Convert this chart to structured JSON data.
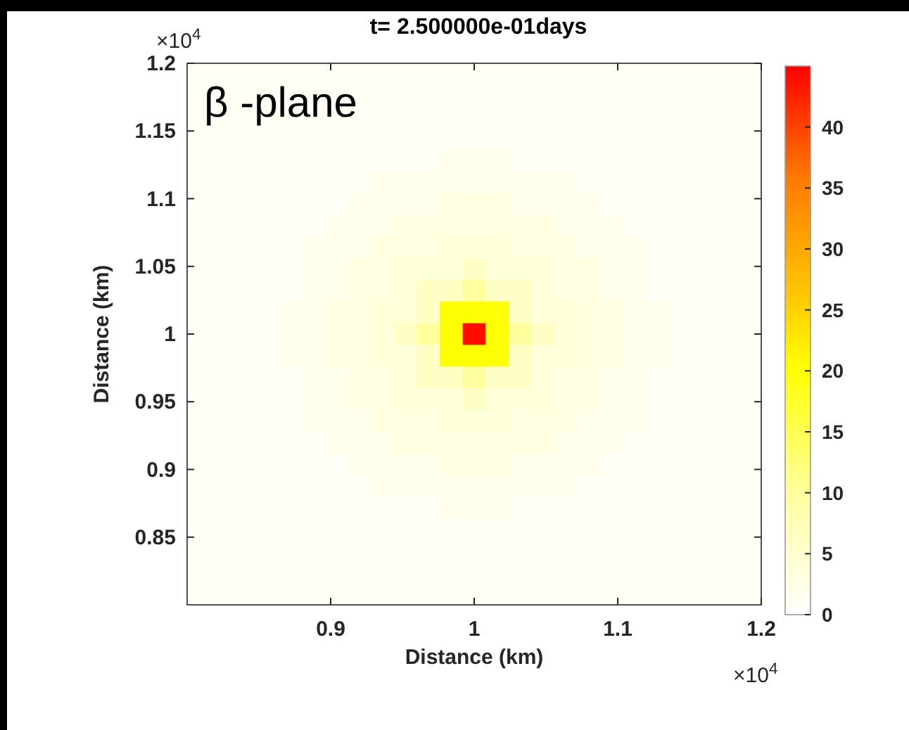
{
  "chart_data": {
    "type": "heatmap",
    "title": "t= 2.500000e-01days",
    "xlabel": "Distance (km)",
    "ylabel": "Distance (km)",
    "annotations": [
      "β -plane",
      "×10$^{4}$",
      "×10$^{4}$"
    ],
    "xlim": [
      0.8,
      1.2
    ],
    "ylim": [
      0.8,
      1.2
    ],
    "xticks": [
      0.9,
      1,
      1.1,
      1.2
    ],
    "yticks": [
      0.85,
      0.9,
      0.95,
      1,
      1.05,
      1.1,
      1.15,
      1.2
    ],
    "clim": [
      0,
      45
    ],
    "cticks": [
      0,
      5,
      10,
      15,
      20,
      25,
      30,
      35,
      40
    ],
    "grid": false,
    "cells": [
      [
        1,
        1,
        1,
        1,
        1,
        1,
        1,
        1,
        1,
        1,
        1,
        1,
        1,
        1,
        1,
        1,
        1,
        1,
        1,
        1,
        1,
        1,
        1,
        1,
        1
      ],
      [
        1,
        1,
        1,
        1,
        1,
        1,
        1,
        1,
        1,
        1,
        1,
        1,
        1,
        1,
        1,
        1,
        1,
        1,
        1,
        1,
        1,
        1,
        1,
        1,
        1
      ],
      [
        1,
        1,
        1,
        1,
        1,
        1,
        1,
        1,
        1,
        1,
        1,
        1,
        1,
        1,
        1,
        1,
        1,
        1,
        1,
        1,
        1,
        1,
        1,
        1,
        1
      ],
      [
        1,
        1,
        1,
        1,
        1,
        1,
        1,
        1,
        1,
        1,
        1,
        1,
        1,
        1,
        1,
        1,
        1,
        1,
        1,
        1,
        1,
        1,
        1,
        1,
        1
      ],
      [
        1,
        1,
        1,
        1,
        1,
        1,
        1,
        1,
        1,
        1,
        1,
        2,
        2,
        2,
        1,
        1,
        1,
        1,
        1,
        1,
        1,
        1,
        1,
        1,
        1
      ],
      [
        1,
        1,
        1,
        1,
        1,
        1,
        1,
        1,
        2,
        2,
        2,
        2,
        2,
        2,
        2,
        2,
        2,
        1,
        1,
        1,
        1,
        1,
        1,
        1,
        1
      ],
      [
        1,
        1,
        1,
        1,
        1,
        1,
        1,
        2,
        2,
        2,
        2,
        3,
        3,
        3,
        2,
        2,
        2,
        2,
        1,
        1,
        1,
        1,
        1,
        1,
        1
      ],
      [
        1,
        1,
        1,
        1,
        1,
        1,
        2,
        2,
        2,
        3,
        3,
        3,
        3,
        3,
        3,
        3,
        2,
        2,
        2,
        1,
        1,
        1,
        1,
        1,
        1
      ],
      [
        1,
        1,
        1,
        1,
        1,
        2,
        2,
        2,
        3,
        3,
        3,
        4,
        4,
        4,
        3,
        3,
        3,
        2,
        2,
        2,
        1,
        1,
        1,
        1,
        1
      ],
      [
        1,
        1,
        1,
        1,
        1,
        2,
        2,
        3,
        3,
        4,
        4,
        4,
        6,
        4,
        4,
        4,
        3,
        3,
        2,
        2,
        1,
        1,
        1,
        1,
        1
      ],
      [
        1,
        1,
        1,
        1,
        1,
        2,
        2,
        3,
        3,
        4,
        6,
        6,
        10,
        6,
        6,
        4,
        3,
        3,
        2,
        2,
        1,
        1,
        1,
        1,
        1
      ],
      [
        1,
        1,
        1,
        1,
        2,
        2,
        3,
        3,
        4,
        4,
        6,
        20,
        20,
        20,
        6,
        4,
        4,
        3,
        3,
        2,
        2,
        1,
        1,
        1,
        1
      ],
      [
        1,
        1,
        1,
        1,
        2,
        2,
        3,
        3,
        4,
        6,
        10,
        20,
        44,
        20,
        10,
        6,
        4,
        3,
        3,
        2,
        2,
        1,
        1,
        1,
        1
      ],
      [
        1,
        1,
        1,
        1,
        2,
        2,
        3,
        3,
        4,
        4,
        6,
        20,
        20,
        20,
        6,
        4,
        4,
        3,
        3,
        2,
        2,
        1,
        1,
        1,
        1
      ],
      [
        1,
        1,
        1,
        1,
        1,
        2,
        2,
        3,
        3,
        4,
        6,
        6,
        10,
        6,
        6,
        4,
        3,
        3,
        2,
        2,
        1,
        1,
        1,
        1,
        1
      ],
      [
        1,
        1,
        1,
        1,
        1,
        2,
        2,
        3,
        3,
        4,
        4,
        4,
        6,
        4,
        4,
        4,
        3,
        3,
        2,
        2,
        1,
        1,
        1,
        1,
        1
      ],
      [
        1,
        1,
        1,
        1,
        1,
        2,
        2,
        2,
        3,
        3,
        3,
        4,
        4,
        4,
        3,
        3,
        3,
        2,
        2,
        2,
        1,
        1,
        1,
        1,
        1
      ],
      [
        1,
        1,
        1,
        1,
        1,
        1,
        2,
        2,
        2,
        3,
        3,
        3,
        3,
        3,
        3,
        3,
        2,
        2,
        2,
        1,
        1,
        1,
        1,
        1,
        1
      ],
      [
        1,
        1,
        1,
        1,
        1,
        1,
        1,
        2,
        2,
        2,
        2,
        3,
        3,
        3,
        2,
        2,
        2,
        2,
        1,
        1,
        1,
        1,
        1,
        1,
        1
      ],
      [
        1,
        1,
        1,
        1,
        1,
        1,
        1,
        1,
        2,
        2,
        2,
        2,
        2,
        2,
        2,
        2,
        2,
        1,
        1,
        1,
        1,
        1,
        1,
        1,
        1
      ],
      [
        1,
        1,
        1,
        1,
        1,
        1,
        1,
        1,
        1,
        1,
        1,
        2,
        2,
        2,
        1,
        1,
        1,
        1,
        1,
        1,
        1,
        1,
        1,
        1,
        1
      ],
      [
        1,
        1,
        1,
        1,
        1,
        1,
        1,
        1,
        1,
        1,
        1,
        1,
        1,
        1,
        1,
        1,
        1,
        1,
        1,
        1,
        1,
        1,
        1,
        1,
        1
      ],
      [
        1,
        1,
        1,
        1,
        1,
        1,
        1,
        1,
        1,
        1,
        1,
        1,
        1,
        1,
        1,
        1,
        1,
        1,
        1,
        1,
        1,
        1,
        1,
        1,
        1
      ],
      [
        1,
        1,
        1,
        1,
        1,
        1,
        1,
        1,
        1,
        1,
        1,
        1,
        1,
        1,
        1,
        1,
        1,
        1,
        1,
        1,
        1,
        1,
        1,
        1,
        1
      ],
      [
        1,
        1,
        1,
        1,
        1,
        1,
        1,
        1,
        1,
        1,
        1,
        1,
        1,
        1,
        1,
        1,
        1,
        1,
        1,
        1,
        1,
        1,
        1,
        1,
        1
      ]
    ]
  }
}
